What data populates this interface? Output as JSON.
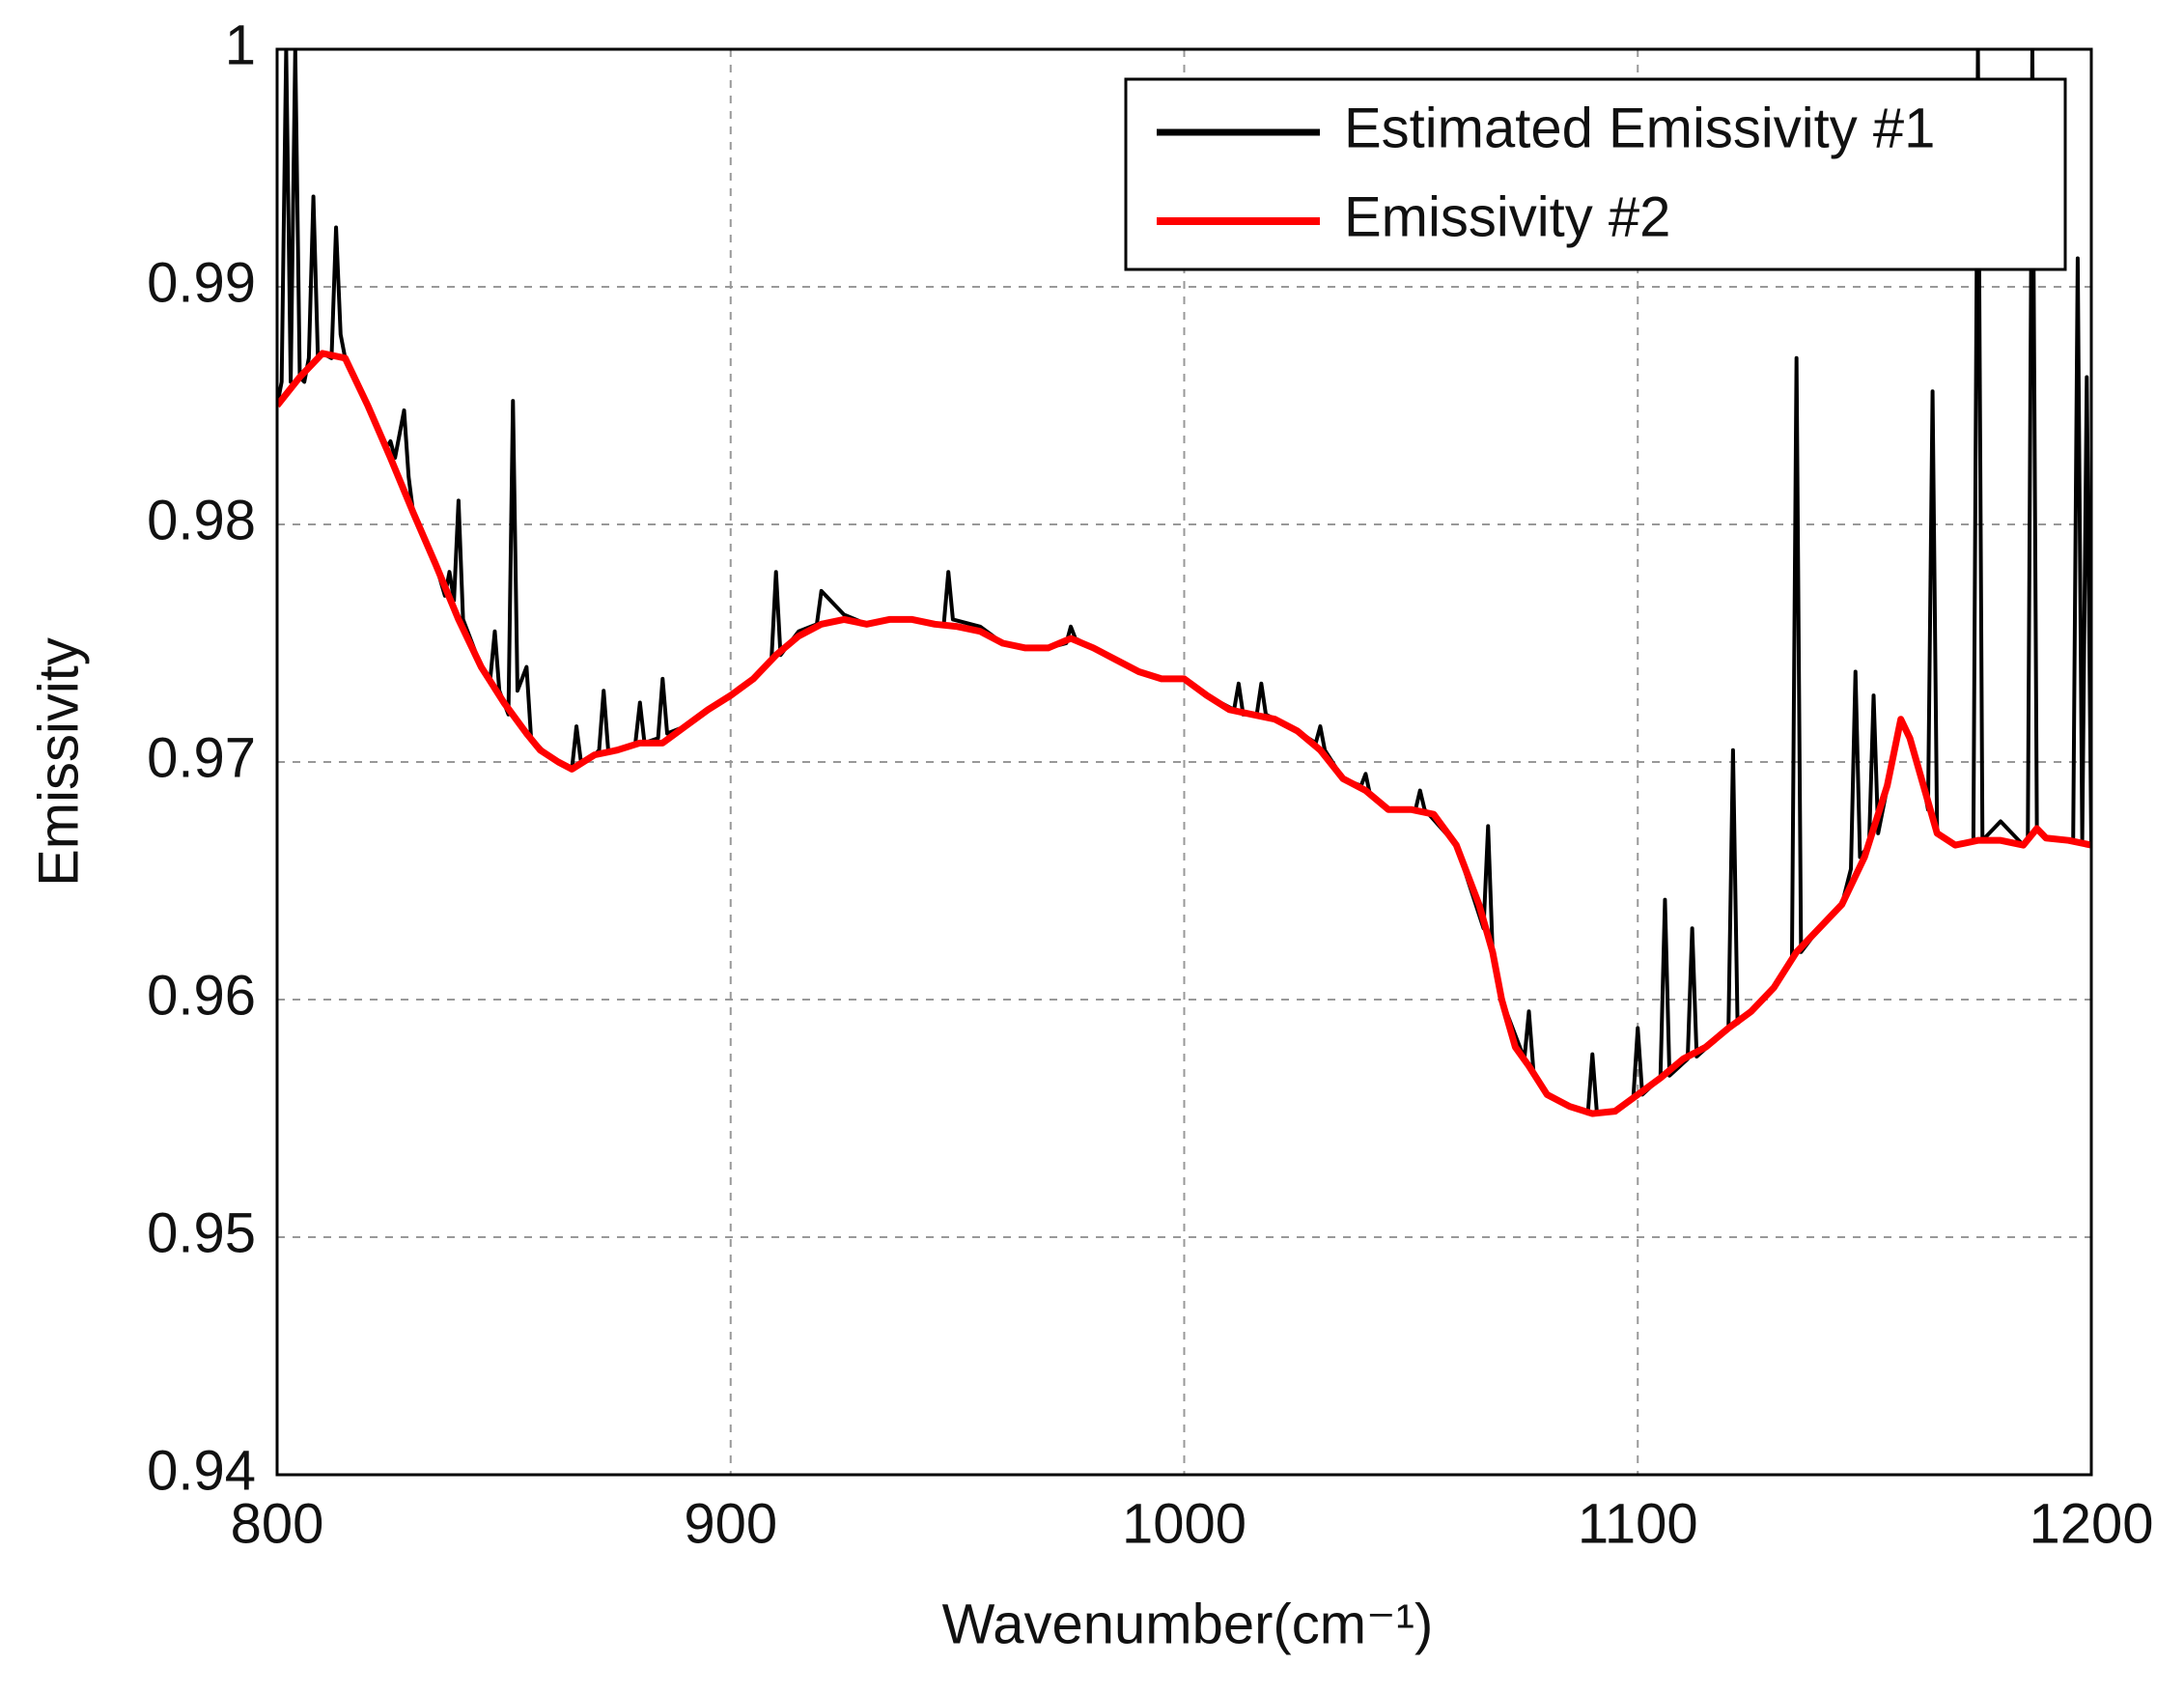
{
  "chart_data": {
    "type": "line",
    "xlabel": "Wavenumber(cm⁻¹)",
    "ylabel": "Emissivity",
    "xlim": [
      800,
      1200
    ],
    "xticks": [
      800,
      900,
      1000,
      1100,
      1200
    ],
    "ylim": [
      0.94,
      1
    ],
    "yticks": [
      0.94,
      0.95,
      0.96,
      0.97,
      0.98,
      0.99,
      1
    ],
    "grid": true,
    "legend": "upper right",
    "series": [
      {
        "name": "Estimated Emissivity #1",
        "color": "#000000",
        "x": [
          800,
          801,
          802,
          803,
          804,
          805,
          806,
          807,
          808,
          809,
          810,
          812,
          813,
          814,
          815,
          820,
          824,
          825,
          826,
          828,
          829,
          830,
          835,
          837,
          838,
          839,
          840,
          841,
          845,
          847,
          848,
          849,
          850,
          851,
          852,
          853,
          855,
          856,
          860,
          865,
          866,
          867,
          870,
          871,
          872,
          873,
          875,
          879,
          880,
          881,
          884,
          885,
          886,
          890,
          895,
          900,
          905,
          909,
          910,
          911,
          915,
          919,
          920,
          922,
          925,
          930,
          935,
          940,
          945,
          947,
          948,
          949,
          955,
          960,
          965,
          970,
          974,
          975,
          976,
          980,
          985,
          990,
          995,
          1000,
          1005,
          1011,
          1012,
          1013,
          1016,
          1017,
          1018,
          1025,
          1029,
          1030,
          1031,
          1035,
          1039,
          1040,
          1041,
          1045,
          1051,
          1052,
          1053,
          1060,
          1066,
          1067,
          1068,
          1070,
          1075,
          1076,
          1077,
          1080,
          1085,
          1089,
          1090,
          1091,
          1095,
          1099,
          1100,
          1101,
          1105,
          1106,
          1107,
          1111,
          1112,
          1113,
          1120,
          1121,
          1122,
          1125,
          1130,
          1134,
          1135,
          1136,
          1140,
          1145,
          1147,
          1148,
          1149,
          1151,
          1152,
          1153,
          1158,
          1160,
          1163,
          1164,
          1165,
          1166,
          1170,
          1174,
          1175,
          1176,
          1180,
          1185,
          1186,
          1187,
          1188,
          1190,
          1195,
          1196,
          1197,
          1198,
          1199,
          1200
        ],
        "values": [
          0.985,
          0.986,
          1.0,
          0.986,
          1.0,
          0.9862,
          0.986,
          0.987,
          0.9938,
          0.987,
          0.9872,
          0.987,
          0.9925,
          0.988,
          0.987,
          0.985,
          0.9832,
          0.9835,
          0.9828,
          0.9848,
          0.982,
          0.9805,
          0.9783,
          0.977,
          0.978,
          0.9768,
          0.981,
          0.976,
          0.974,
          0.9735,
          0.9755,
          0.973,
          0.9725,
          0.972,
          0.9852,
          0.973,
          0.974,
          0.971,
          0.9702,
          0.9697,
          0.9715,
          0.97,
          0.9703,
          0.9705,
          0.973,
          0.9705,
          0.9705,
          0.9708,
          0.9725,
          0.9708,
          0.971,
          0.9735,
          0.9712,
          0.9715,
          0.9722,
          0.9728,
          0.9735,
          0.9743,
          0.978,
          0.9745,
          0.9755,
          0.9758,
          0.9772,
          0.9768,
          0.9762,
          0.9758,
          0.976,
          0.976,
          0.9758,
          0.9758,
          0.978,
          0.976,
          0.9757,
          0.975,
          0.9748,
          0.9748,
          0.975,
          0.9757,
          0.9752,
          0.9748,
          0.9743,
          0.9738,
          0.9735,
          0.9735,
          0.9728,
          0.9722,
          0.9733,
          0.972,
          0.972,
          0.9733,
          0.972,
          0.9713,
          0.9708,
          0.9715,
          0.9705,
          0.9693,
          0.969,
          0.9695,
          0.9686,
          0.968,
          0.968,
          0.9688,
          0.968,
          0.9665,
          0.963,
          0.9673,
          0.962,
          0.96,
          0.9575,
          0.9595,
          0.957,
          0.956,
          0.9555,
          0.9552,
          0.9577,
          0.9552,
          0.9553,
          0.9558,
          0.9588,
          0.956,
          0.9567,
          0.9642,
          0.9568,
          0.9575,
          0.963,
          0.9576,
          0.9588,
          0.9705,
          0.959,
          0.9595,
          0.9605,
          0.9618,
          0.987,
          0.962,
          0.963,
          0.964,
          0.9655,
          0.9738,
          0.966,
          0.9665,
          0.9728,
          0.967,
          0.9718,
          0.971,
          0.969,
          0.968,
          0.9856,
          0.967,
          0.9665,
          0.9667,
          1.0,
          0.9667,
          0.9675,
          0.9665,
          0.9667,
          1.0,
          0.9672,
          0.9668,
          0.9667,
          0.9667,
          0.9912,
          0.9667,
          0.9862,
          0.9665
        ]
      },
      {
        "name": "Emissivity #2",
        "color": "#ff0000",
        "x": [
          800,
          805,
          810,
          815,
          820,
          825,
          830,
          835,
          840,
          845,
          850,
          855,
          858,
          862,
          865,
          870,
          875,
          880,
          885,
          890,
          895,
          900,
          905,
          910,
          915,
          920,
          925,
          930,
          935,
          940,
          945,
          950,
          955,
          960,
          965,
          970,
          975,
          980,
          985,
          990,
          995,
          1000,
          1005,
          1010,
          1015,
          1020,
          1025,
          1030,
          1035,
          1040,
          1045,
          1050,
          1055,
          1060,
          1065,
          1068,
          1070,
          1073,
          1076,
          1080,
          1085,
          1090,
          1095,
          1100,
          1105,
          1110,
          1115,
          1120,
          1125,
          1130,
          1135,
          1140,
          1145,
          1150,
          1155,
          1158,
          1160,
          1163,
          1166,
          1170,
          1175,
          1180,
          1185,
          1188,
          1190,
          1195,
          1200
        ],
        "values": [
          0.985,
          0.9862,
          0.9872,
          0.987,
          0.985,
          0.9828,
          0.9805,
          0.9783,
          0.976,
          0.974,
          0.9725,
          0.9712,
          0.9705,
          0.97,
          0.9697,
          0.9703,
          0.9705,
          0.9708,
          0.9708,
          0.9715,
          0.9722,
          0.9728,
          0.9735,
          0.9745,
          0.9753,
          0.9758,
          0.976,
          0.9758,
          0.976,
          0.976,
          0.9758,
          0.9757,
          0.9755,
          0.975,
          0.9748,
          0.9748,
          0.9752,
          0.9748,
          0.9743,
          0.9738,
          0.9735,
          0.9735,
          0.9728,
          0.9722,
          0.972,
          0.9718,
          0.9713,
          0.9705,
          0.9693,
          0.9688,
          0.968,
          0.968,
          0.9678,
          0.9665,
          0.964,
          0.962,
          0.96,
          0.958,
          0.9572,
          0.956,
          0.9555,
          0.9552,
          0.9553,
          0.956,
          0.9567,
          0.9575,
          0.958,
          0.9588,
          0.9595,
          0.9605,
          0.962,
          0.963,
          0.964,
          0.966,
          0.969,
          0.9718,
          0.971,
          0.969,
          0.967,
          0.9665,
          0.9667,
          0.9667,
          0.9665,
          0.9672,
          0.9668,
          0.9667,
          0.9665
        ]
      }
    ]
  }
}
